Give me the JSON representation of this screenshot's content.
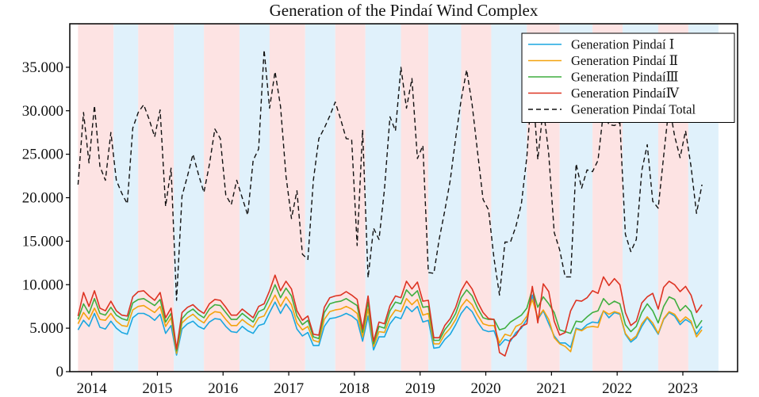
{
  "chart_data": {
    "type": "line",
    "title": "Generation of the Pindaí Wind Complex",
    "xlabel": "",
    "ylabel": "",
    "x_start": "2013-11",
    "ylim": [
      0,
      40000
    ],
    "yticks": [
      0,
      5000,
      10000,
      15000,
      20000,
      25000,
      30000,
      35000
    ],
    "ytick_labels": [
      "0",
      "5.000",
      "10.000",
      "15.000",
      "20.000",
      "25.000",
      "30.000",
      "35.000"
    ],
    "xtick_labels": [
      "2014",
      "2015",
      "2016",
      "2017",
      "2018",
      "2019",
      "2020",
      "2021",
      "2022",
      "2023"
    ],
    "xtick_positions": [
      2.5,
      14.5,
      26.5,
      38.5,
      50.5,
      62.5,
      74.5,
      86.5,
      98.5,
      110.5
    ],
    "x_range": [
      -1.5,
      120.5
    ],
    "legend_position": "top-right",
    "bands": [
      {
        "from": 0,
        "to": 6.5,
        "color": "#fde3e3"
      },
      {
        "from": 6.5,
        "to": 11,
        "color": "#e0f1fb"
      },
      {
        "from": 11,
        "to": 17.5,
        "color": "#fde3e3"
      },
      {
        "from": 17.5,
        "to": 23,
        "color": "#e0f1fb"
      },
      {
        "from": 23,
        "to": 29.5,
        "color": "#fde3e3"
      },
      {
        "from": 29.5,
        "to": 35,
        "color": "#e0f1fb"
      },
      {
        "from": 35,
        "to": 41.5,
        "color": "#fde3e3"
      },
      {
        "from": 41.5,
        "to": 47,
        "color": "#e0f1fb"
      },
      {
        "from": 47,
        "to": 52.5,
        "color": "#fde3e3"
      },
      {
        "from": 52.5,
        "to": 59,
        "color": "#e0f1fb"
      },
      {
        "from": 59,
        "to": 64,
        "color": "#fde3e3"
      },
      {
        "from": 64,
        "to": 70,
        "color": "#e0f1fb"
      },
      {
        "from": 70,
        "to": 75.5,
        "color": "#fde3e3"
      },
      {
        "from": 75.5,
        "to": 82,
        "color": "#e0f1fb"
      },
      {
        "from": 82,
        "to": 88,
        "color": "#fde3e3"
      },
      {
        "from": 88,
        "to": 94,
        "color": "#e0f1fb"
      },
      {
        "from": 94,
        "to": 99.5,
        "color": "#fde3e3"
      },
      {
        "from": 99.5,
        "to": 106,
        "color": "#e0f1fb"
      },
      {
        "from": 106,
        "to": 111.5,
        "color": "#fde3e3"
      },
      {
        "from": 111.5,
        "to": 117,
        "color": "#e0f1fb"
      }
    ],
    "series": [
      {
        "name": "Generation Pindaí Ⅰ",
        "color": "#1aa7e0",
        "dash": "",
        "values": [
          4800,
          5900,
          5200,
          6700,
          5100,
          4900,
          5800,
          5000,
          4500,
          4300,
          6200,
          6700,
          6700,
          6400,
          5900,
          6600,
          4400,
          5300,
          1900,
          4900,
          5500,
          5800,
          5200,
          4900,
          5700,
          6100,
          6000,
          5200,
          4600,
          4500,
          5200,
          4700,
          4400,
          5300,
          5500,
          6800,
          8000,
          6700,
          7800,
          6900,
          4900,
          4100,
          4500,
          3000,
          3000,
          5200,
          6100,
          6200,
          6400,
          6700,
          6400,
          5900,
          3500,
          6400,
          2500,
          4000,
          4000,
          5500,
          6300,
          6100,
          7500,
          6900,
          7500,
          5700,
          5900,
          2700,
          2800,
          3700,
          4300,
          5400,
          6700,
          7500,
          6900,
          5700,
          4800,
          4600,
          4700,
          3000,
          3700,
          3500,
          4500,
          5000,
          6000,
          8800,
          6000,
          7000,
          5500,
          4100,
          3300,
          3300,
          2800,
          5000,
          4800,
          5400,
          5700,
          5600,
          7000,
          6200,
          6800,
          6600,
          4300,
          3400,
          3900,
          5200,
          6200,
          5300,
          4300,
          6000,
          6800,
          6400,
          5400,
          6000,
          5600,
          4300,
          5200
        ]
      },
      {
        "name": "Generation Pindaí Ⅱ",
        "color": "#f3a30f",
        "dash": "",
        "values": [
          5500,
          6800,
          6000,
          7300,
          6000,
          5900,
          6700,
          5800,
          5300,
          5200,
          7100,
          7500,
          7600,
          7200,
          6800,
          7500,
          5200,
          6200,
          2100,
          5600,
          6200,
          6600,
          6000,
          5600,
          6500,
          6900,
          6800,
          6000,
          5300,
          5300,
          6000,
          5500,
          5100,
          6200,
          6400,
          7600,
          8800,
          7500,
          8600,
          7700,
          5600,
          4800,
          5200,
          3600,
          3400,
          6000,
          6900,
          7100,
          7200,
          7500,
          7200,
          6700,
          4000,
          7200,
          2900,
          4600,
          4500,
          6200,
          7100,
          6900,
          8400,
          7700,
          8300,
          6500,
          6700,
          3200,
          3200,
          4300,
          5000,
          6000,
          7500,
          8300,
          7700,
          6500,
          5500,
          5300,
          5300,
          3300,
          4300,
          4100,
          5200,
          5500,
          6400,
          8300,
          6200,
          7100,
          6000,
          3900,
          3200,
          2900,
          2300,
          4900,
          4700,
          5100,
          5200,
          5100,
          7000,
          6600,
          6900,
          6700,
          4400,
          3600,
          4100,
          5500,
          6300,
          5600,
          4400,
          6100,
          6900,
          6600,
          5700,
          6300,
          5800,
          4000,
          4800
        ]
      },
      {
        "name": "Generation PindaíⅢ",
        "color": "#3fae3f",
        "dash": "",
        "values": [
          6000,
          7800,
          6700,
          8400,
          6700,
          6500,
          7400,
          6500,
          6100,
          5900,
          7900,
          8300,
          8400,
          8000,
          7600,
          8300,
          5700,
          6700,
          2400,
          6100,
          6800,
          7200,
          6600,
          6200,
          7200,
          7700,
          7600,
          6800,
          6000,
          6000,
          6700,
          6200,
          5700,
          6900,
          7200,
          8500,
          10000,
          8500,
          9600,
          8700,
          6400,
          5400,
          5900,
          4000,
          3800,
          6800,
          7800,
          8000,
          8100,
          8400,
          8000,
          7600,
          4500,
          8000,
          3200,
          5200,
          5000,
          7000,
          8000,
          7800,
          9400,
          8700,
          9300,
          7400,
          7500,
          3600,
          3600,
          4800,
          5600,
          6700,
          8500,
          9400,
          8700,
          7300,
          6200,
          6000,
          6000,
          4800,
          5000,
          5700,
          6100,
          6500,
          7300,
          9500,
          7400,
          8600,
          7800,
          6800,
          4800,
          4600,
          4400,
          5800,
          5700,
          6300,
          6800,
          7000,
          8400,
          7700,
          8100,
          7800,
          5400,
          4600,
          5200,
          6800,
          7800,
          7000,
          5600,
          7500,
          8600,
          8300,
          7000,
          7600,
          6900,
          5000,
          5900
        ]
      },
      {
        "name": "Generation PindaíⅣ",
        "color": "#dd3322",
        "dash": "",
        "values": [
          6400,
          9100,
          7500,
          9300,
          7300,
          7000,
          8100,
          7000,
          6500,
          6400,
          8600,
          9200,
          9300,
          8700,
          8200,
          9100,
          6200,
          7300,
          2600,
          6800,
          7400,
          7700,
          7100,
          6700,
          7800,
          8300,
          8200,
          7400,
          6500,
          6500,
          7200,
          6700,
          6200,
          7500,
          7800,
          9300,
          11100,
          9300,
          10400,
          9500,
          7000,
          5900,
          6400,
          4300,
          4200,
          7400,
          8500,
          8700,
          8800,
          9200,
          8800,
          8300,
          4900,
          8700,
          3500,
          5700,
          5500,
          7600,
          8700,
          8500,
          10400,
          9500,
          10300,
          8100,
          8200,
          3900,
          3900,
          5300,
          6100,
          7400,
          9300,
          10400,
          9500,
          8000,
          6800,
          6100,
          6000,
          2200,
          1800,
          3700,
          4200,
          5200,
          5500,
          9800,
          5600,
          10100,
          9200,
          5800,
          4200,
          4500,
          7000,
          8200,
          8100,
          8500,
          9300,
          9000,
          10900,
          9900,
          10700,
          10000,
          6800,
          5300,
          5800,
          7900,
          8600,
          9000,
          7200,
          9700,
          10400,
          10000,
          9200,
          9800,
          8800,
          6800,
          7700
        ]
      },
      {
        "name": "Generation Pindaí Total",
        "color": "#111111",
        "dash": "6,4",
        "values": [
          21500,
          29800,
          24000,
          30600,
          23600,
          22000,
          27500,
          22000,
          20500,
          19300,
          28000,
          29800,
          30700,
          29000,
          27000,
          30100,
          19000,
          23400,
          8200,
          20200,
          22500,
          25000,
          22700,
          20600,
          23800,
          27900,
          26800,
          20300,
          19200,
          22000,
          20000,
          18000,
          24300,
          25600,
          37000,
          30300,
          34500,
          30500,
          22500,
          17600,
          20800,
          13500,
          12900,
          22000,
          26800,
          28000,
          29400,
          31000,
          29000,
          26800,
          26700,
          14500,
          27800,
          10800,
          16500,
          15200,
          21000,
          29300,
          27700,
          35000,
          30300,
          33700,
          24500,
          26000,
          11400,
          11300,
          15300,
          18500,
          22000,
          26900,
          31300,
          34700,
          30700,
          25200,
          19800,
          18600,
          13000,
          8800,
          14900,
          14900,
          16700,
          19300,
          24700,
          33500,
          24400,
          30400,
          25000,
          16000,
          14000,
          10900,
          10900,
          23900,
          21100,
          23200,
          23000,
          24300,
          29900,
          28400,
          28300,
          28600,
          15800,
          13800,
          15200,
          23100,
          26100,
          19600,
          18800,
          24800,
          30700,
          27100,
          24600,
          27700,
          23600,
          18200,
          21500
        ]
      }
    ]
  }
}
